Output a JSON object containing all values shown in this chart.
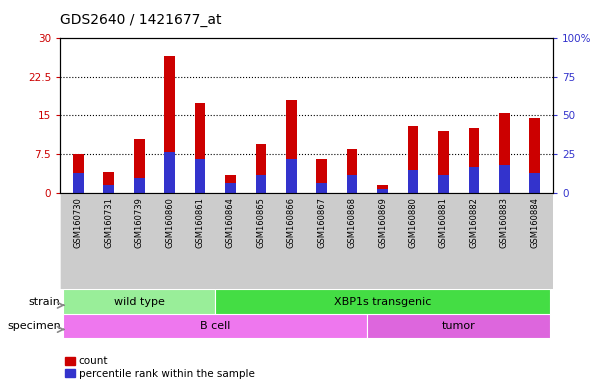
{
  "title": "GDS2640 / 1421677_at",
  "samples": [
    "GSM160730",
    "GSM160731",
    "GSM160739",
    "GSM160860",
    "GSM160861",
    "GSM160864",
    "GSM160865",
    "GSM160866",
    "GSM160867",
    "GSM160868",
    "GSM160869",
    "GSM160880",
    "GSM160881",
    "GSM160882",
    "GSM160883",
    "GSM160884"
  ],
  "count_values": [
    7.5,
    4.0,
    10.5,
    26.5,
    17.5,
    3.5,
    9.5,
    18.0,
    6.5,
    8.5,
    1.5,
    13.0,
    12.0,
    12.5,
    15.5,
    14.5
  ],
  "percentile_values": [
    13.0,
    5.0,
    9.5,
    26.5,
    22.0,
    6.5,
    11.5,
    22.0,
    6.5,
    11.5,
    2.5,
    14.5,
    11.5,
    16.5,
    18.0,
    13.0
  ],
  "count_color": "#cc0000",
  "percentile_color": "#3333cc",
  "ylim_left": [
    0,
    30
  ],
  "ylim_right": [
    0,
    100
  ],
  "yticks_left": [
    0,
    7.5,
    15,
    22.5,
    30
  ],
  "yticks_right": [
    0,
    25,
    50,
    75,
    100
  ],
  "ytick_labels_left": [
    "0",
    "7.5",
    "15",
    "22.5",
    "30"
  ],
  "ytick_labels_right": [
    "0",
    "25",
    "50",
    "75",
    "100%"
  ],
  "bar_width": 0.35,
  "strain_groups": [
    {
      "label": "wild type",
      "start": 0,
      "end": 4,
      "color": "#99ee99"
    },
    {
      "label": "XBP1s transgenic",
      "start": 5,
      "end": 15,
      "color": "#44dd44"
    }
  ],
  "specimen_groups": [
    {
      "label": "B cell",
      "start": 0,
      "end": 9,
      "color": "#ee77ee"
    },
    {
      "label": "tumor",
      "start": 10,
      "end": 15,
      "color": "#dd66dd"
    }
  ],
  "strain_label": "strain",
  "specimen_label": "specimen",
  "legend_count": "count",
  "legend_percentile": "percentile rank within the sample",
  "tick_bg_color": "#cccccc",
  "panel_bg": "#ffffff"
}
